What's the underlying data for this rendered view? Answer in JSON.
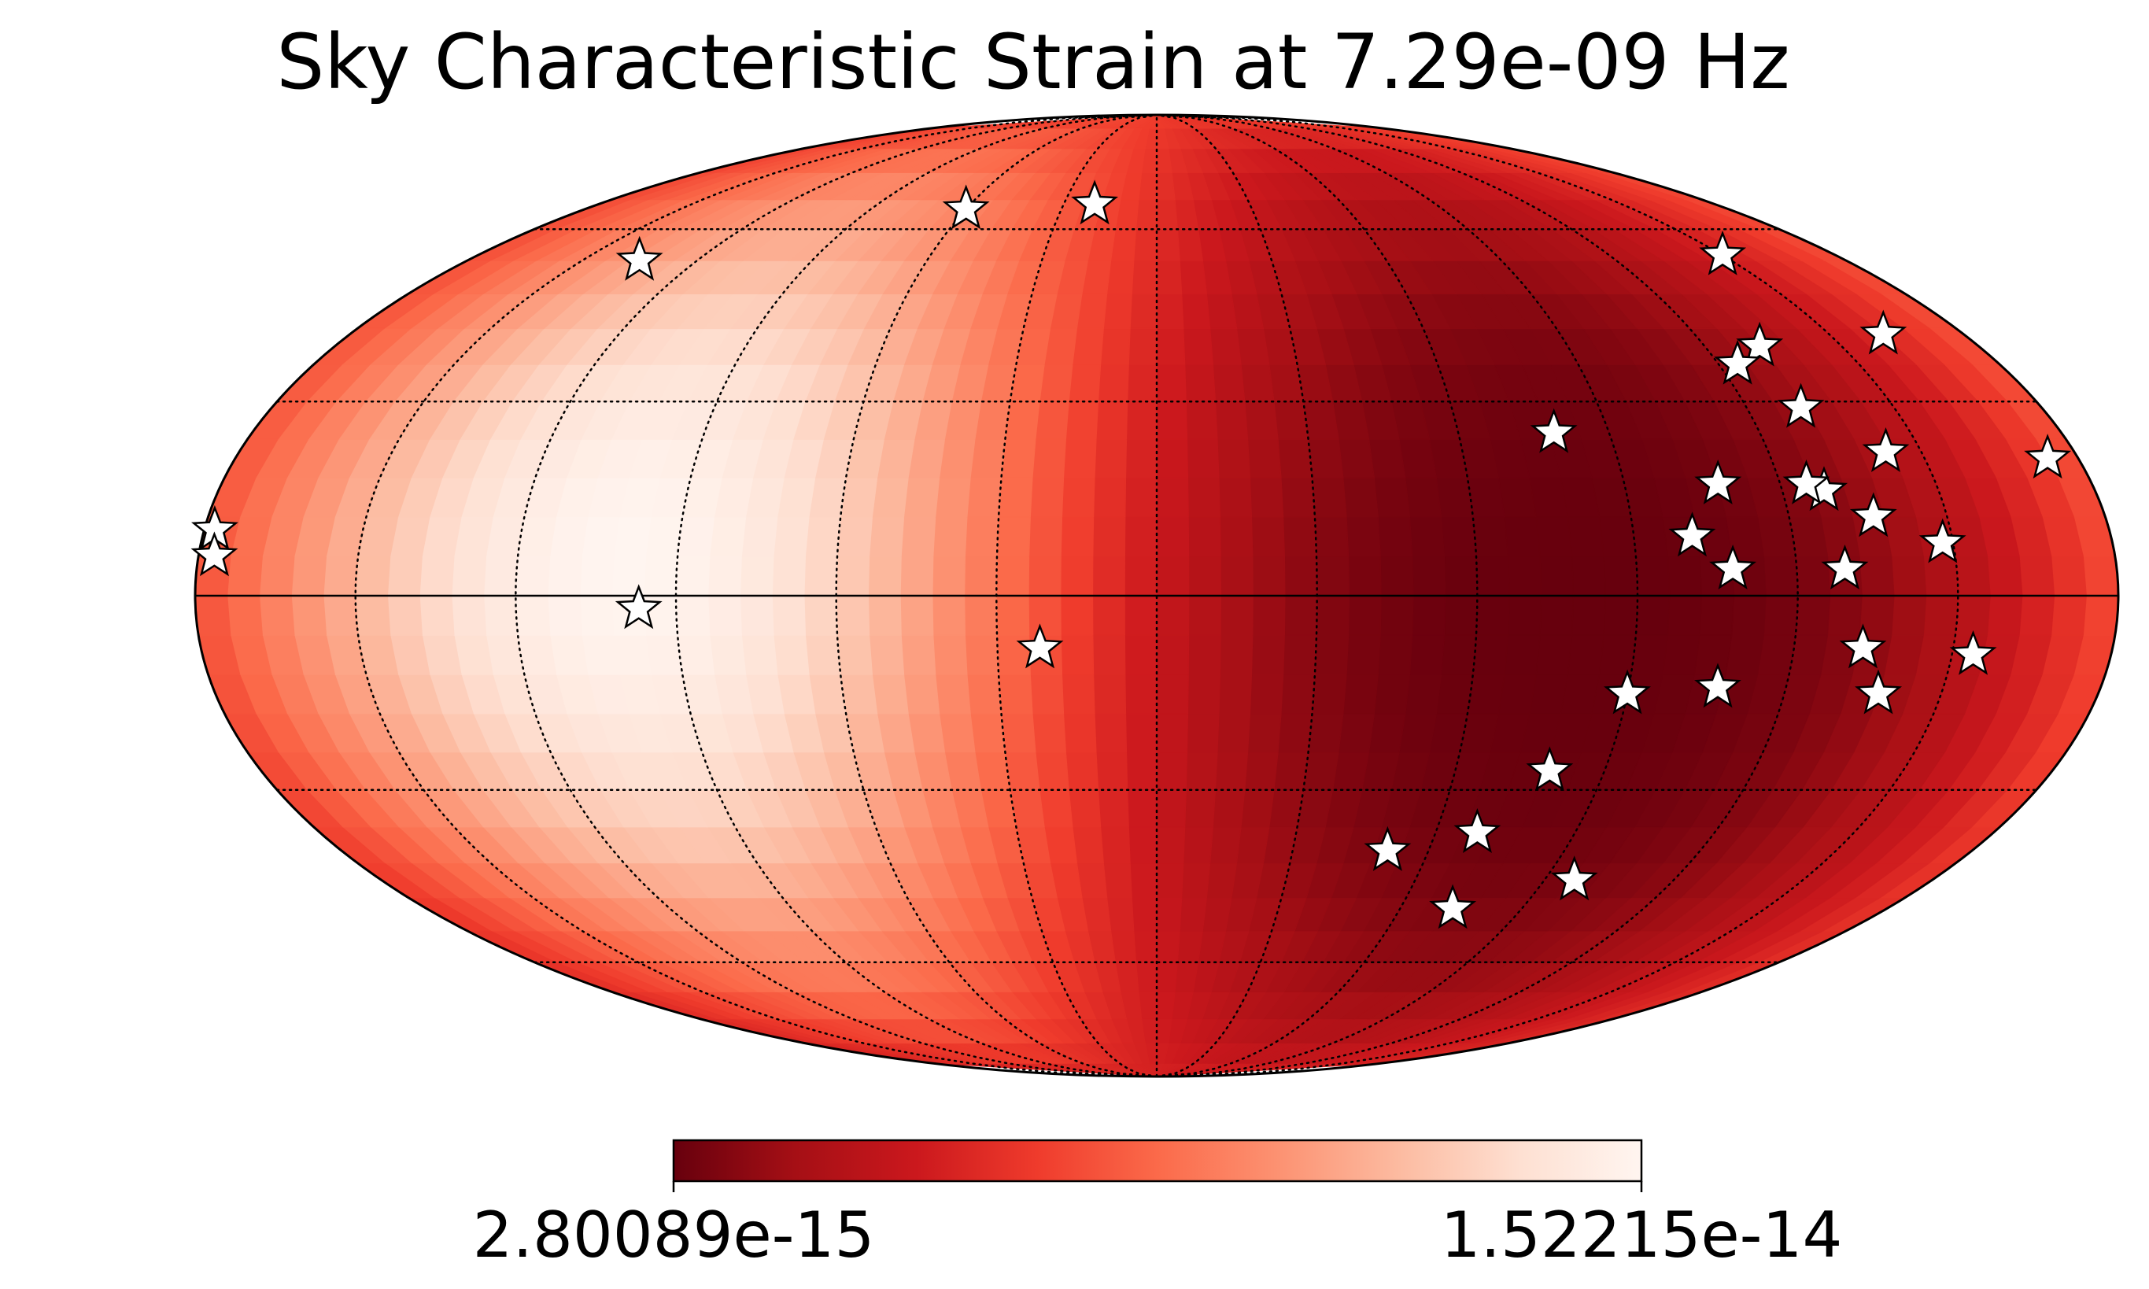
{
  "chart_data": {
    "type": "heatmap",
    "projection": "mollweide",
    "title": "Sky Characteristic Strain at 7.29e-09 Hz",
    "colormap": "Reds_r",
    "colors": [
      "#67000d",
      "#a50f15",
      "#cb181d",
      "#ef3b2c",
      "#fb6a4a",
      "#fc9272",
      "#fcbba1",
      "#fee0d2",
      "#fff5f0"
    ],
    "colorbar": {
      "min_label": "2.80089e-15",
      "max_label": "1.52215e-14",
      "min": 2.80089e-15,
      "max": 1.52215e-14
    },
    "hotspot": {
      "lon": 100,
      "lat": 5
    },
    "grid": true,
    "grid_lon_step_deg": 30,
    "grid_lat_step_deg": 30,
    "pulsars": [
      {
        "lon": 20,
        "lat": 65
      },
      {
        "lon": 60,
        "lat": 64
      },
      {
        "lon": 135,
        "lat": 54
      },
      {
        "lon": -150,
        "lat": 55
      },
      {
        "lon": -162,
        "lat": 41
      },
      {
        "lon": -174,
        "lat": 21
      },
      {
        "lon": -132,
        "lat": 39
      },
      {
        "lon": -124,
        "lat": 36
      },
      {
        "lon": -131,
        "lat": 29
      },
      {
        "lon": -143,
        "lat": 22
      },
      {
        "lon": -128,
        "lat": 16
      },
      {
        "lon": -125,
        "lat": 17
      },
      {
        "lon": -136,
        "lat": 12
      },
      {
        "lon": -148,
        "lat": 8
      },
      {
        "lon": -129,
        "lat": 4
      },
      {
        "lon": -108,
        "lat": 17
      },
      {
        "lon": -101,
        "lat": 9
      },
      {
        "lon": -108,
        "lat": 4
      },
      {
        "lon": -79,
        "lat": 25
      },
      {
        "lon": -154,
        "lat": -9
      },
      {
        "lon": -133,
        "lat": -8
      },
      {
        "lon": -138,
        "lat": -15
      },
      {
        "lon": -107,
        "lat": -14
      },
      {
        "lon": -90,
        "lat": -15
      },
      {
        "lon": -79,
        "lat": -27
      },
      {
        "lon": -69,
        "lat": -37
      },
      {
        "lon": -51,
        "lat": -40
      },
      {
        "lon": -97,
        "lat": -45
      },
      {
        "lon": -73,
        "lat": -50
      },
      {
        "lon": 22,
        "lat": -8
      },
      {
        "lon": 97,
        "lat": -2
      },
      {
        "lon": 178,
        "lat": 10
      },
      {
        "lon": 177,
        "lat": 6
      }
    ]
  }
}
